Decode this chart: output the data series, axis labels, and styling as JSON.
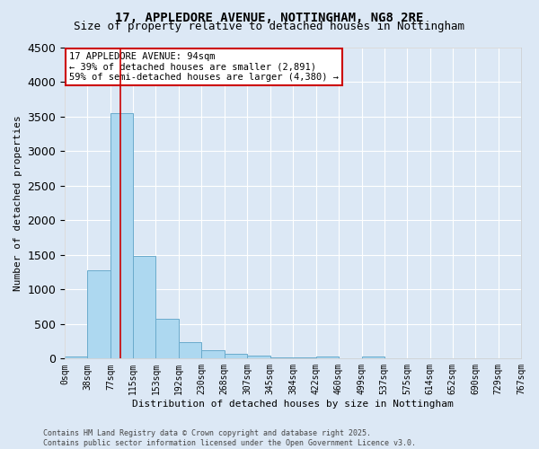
{
  "title": "17, APPLEDORE AVENUE, NOTTINGHAM, NG8 2RE",
  "subtitle": "Size of property relative to detached houses in Nottingham",
  "xlabel": "Distribution of detached houses by size in Nottingham",
  "ylabel": "Number of detached properties",
  "bar_color": "#add8f0",
  "bar_edge_color": "#6aabcc",
  "background_color": "#dce8f5",
  "bin_edges": [
    0,
    38,
    77,
    115,
    153,
    192,
    230,
    268,
    307,
    345,
    384,
    422,
    460,
    499,
    537,
    575,
    614,
    652,
    690,
    729,
    767
  ],
  "bar_heights": [
    30,
    1280,
    3550,
    1480,
    580,
    240,
    115,
    75,
    40,
    20,
    20,
    25,
    0,
    30,
    0,
    0,
    0,
    0,
    0,
    0
  ],
  "property_size": 94,
  "red_line_color": "#cc0000",
  "annotation_line1": "17 APPLEDORE AVENUE: 94sqm",
  "annotation_line2": "← 39% of detached houses are smaller (2,891)",
  "annotation_line3": "59% of semi-detached houses are larger (4,380) →",
  "annotation_box_color": "#ffffff",
  "annotation_box_edge_color": "#cc0000",
  "ylim": [
    0,
    4500
  ],
  "yticks": [
    0,
    500,
    1000,
    1500,
    2000,
    2500,
    3000,
    3500,
    4000,
    4500
  ],
  "footer_text": "Contains HM Land Registry data © Crown copyright and database right 2025.\nContains public sector information licensed under the Open Government Licence v3.0.",
  "title_fontsize": 10,
  "subtitle_fontsize": 9,
  "tick_label_fontsize": 7,
  "axis_label_fontsize": 8,
  "annotation_fontsize": 7.5,
  "footer_fontsize": 6
}
